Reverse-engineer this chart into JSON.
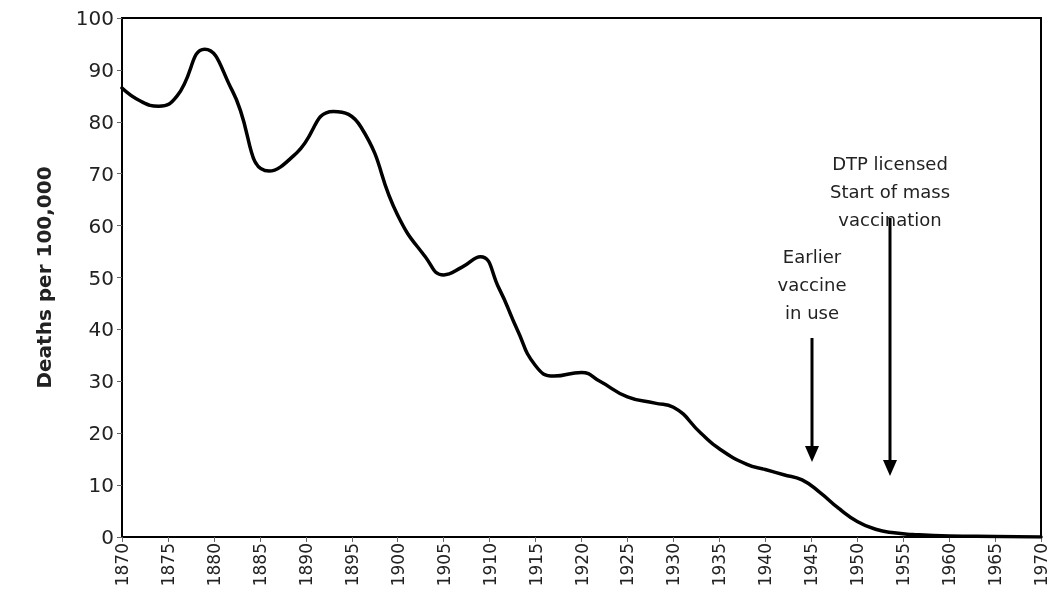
{
  "chart_data": {
    "type": "line",
    "ylabel": "Deaths per 100,000",
    "x": [
      1870,
      1872,
      1874,
      1876,
      1879,
      1882,
      1886,
      1889,
      1893,
      1896,
      1900,
      1903,
      1905,
      1907,
      1909,
      1911,
      1913,
      1915,
      1917,
      1920,
      1922,
      1925,
      1928,
      1930,
      1933,
      1935,
      1938,
      1940,
      1942,
      1944,
      1946,
      1948,
      1950,
      1952,
      1954,
      1956,
      1960,
      1965,
      1970
    ],
    "series": [
      {
        "color": "#000000",
        "values": [
          86.5,
          84,
          83,
          85,
          94,
          86,
          70.5,
          74,
          82,
          79,
          62,
          54,
          50.5,
          52,
          54,
          48,
          40,
          33,
          31,
          31.7,
          30,
          27,
          25.8,
          25,
          20,
          17,
          14,
          13,
          12,
          11,
          8.5,
          5.5,
          3,
          1.5,
          0.8,
          0.5,
          0.2,
          0.1,
          0
        ]
      }
    ],
    "xlim": [
      1870,
      1970
    ],
    "xticks": [
      1870,
      1875,
      1880,
      1885,
      1890,
      1895,
      1900,
      1905,
      1910,
      1915,
      1920,
      1925,
      1930,
      1935,
      1940,
      1945,
      1950,
      1955,
      1960,
      1965,
      1970
    ],
    "ylim": [
      0,
      100
    ],
    "yticks": [
      0,
      10,
      20,
      30,
      40,
      50,
      60,
      70,
      80,
      90,
      100
    ],
    "grid": false,
    "marker": "none",
    "line_style": "solid",
    "annotations": [
      "Earlier\nvaccine\nin use",
      "DTP licensed\nStart of mass\nvaccination"
    ]
  }
}
